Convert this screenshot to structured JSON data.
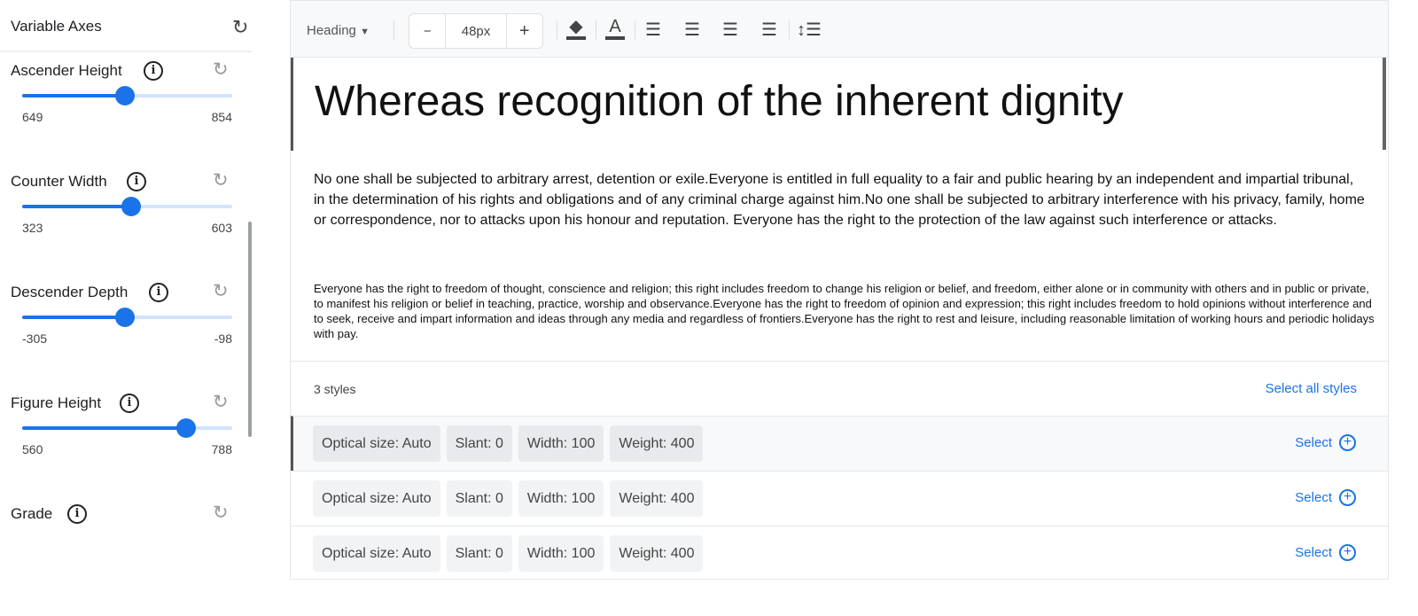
{
  "sidebar": {
    "title": "Variable Axes",
    "reset_icon": "refresh-icon",
    "axes": [
      {
        "label": "Ascender Height",
        "min": "649",
        "max": "854",
        "value_fraction": 0.49
      },
      {
        "label": "Counter Width",
        "min": "323",
        "max": "603",
        "value_fraction": 0.52
      },
      {
        "label": "Descender Depth",
        "min": "-305",
        "max": "-98",
        "value_fraction": 0.49
      },
      {
        "label": "Figure Height",
        "min": "560",
        "max": "788",
        "value_fraction": 0.78
      },
      {
        "label": "Grade"
      }
    ]
  },
  "toolbar": {
    "style_select": "Heading",
    "minus": "−",
    "size": "48px",
    "plus": "+"
  },
  "preview": {
    "heading": "Whereas recognition of the inherent dignity",
    "body": "No one shall be subjected to arbitrary arrest, detention or exile.Everyone is entitled in full equality to a fair and public hearing by an independent and impartial tribunal, in the determination of his rights and obligations and of any criminal charge against him.No one shall be subjected to arbitrary interference with his privacy, family, home or correspondence, nor to attacks upon his honour and reputation. Everyone has the right to the protection of the law against such interference or attacks.",
    "small": "Everyone has the right to freedom of thought, conscience and religion; this right includes freedom to change his religion or belief, and freedom, either alone or in community with others and in public or private, to manifest his religion or belief in teaching, practice, worship and observance.Everyone has the right to freedom of opinion and expression; this right includes freedom to hold opinions without interference and to seek, receive and impart information and ideas through any media and regardless of frontiers.Everyone has the right to rest and leisure, including reasonable limitation of working hours and periodic holidays with pay."
  },
  "styles": {
    "count": "3 styles",
    "select_all": "Select all styles",
    "select_label": "Select",
    "rows": [
      {
        "chips": [
          "Optical size: Auto",
          "Slant: 0",
          "Width: 100",
          "Weight: 400"
        ]
      },
      {
        "chips": [
          "Optical size: Auto",
          "Slant: 0",
          "Width: 100",
          "Weight: 400"
        ]
      },
      {
        "chips": [
          "Optical size: Auto",
          "Slant: 0",
          "Width: 100",
          "Weight: 400"
        ]
      }
    ]
  },
  "colors": {
    "accent": "#1a73e8",
    "track": "#d2e3fc"
  }
}
